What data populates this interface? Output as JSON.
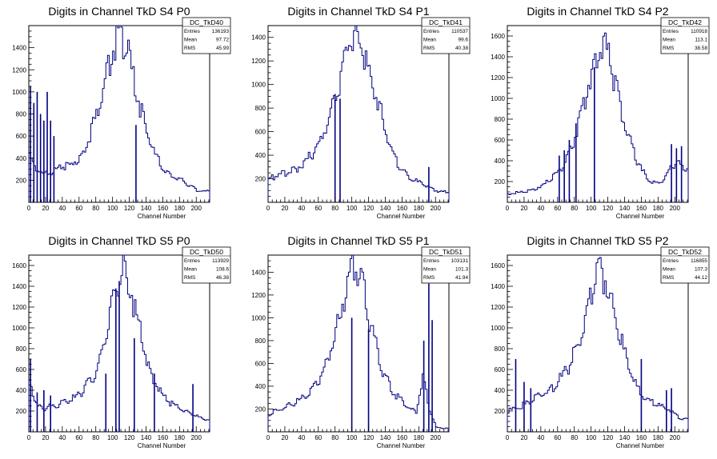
{
  "chart_data": [
    {
      "id": "DC_TkD40",
      "type": "histogram",
      "title": "Digits in Channel TkD S4 P0",
      "xlabel": "Channel Number",
      "ylabel": "",
      "xlim": [
        0,
        216
      ],
      "ylim": [
        0,
        1600
      ],
      "x_ticks": [
        0,
        20,
        40,
        60,
        80,
        100,
        120,
        140,
        160,
        180,
        200
      ],
      "y_ticks": [
        200,
        400,
        600,
        800,
        1000,
        1200,
        1400
      ],
      "stats": {
        "name": "DC_TkD40",
        "entries_label": "Entries",
        "entries": "136193",
        "mean_label": "Mean",
        "mean": "97.72",
        "rms_label": "RMS",
        "rms": "45.99"
      },
      "bins": [
        [
          0,
          400
        ],
        [
          8,
          300
        ],
        [
          16,
          250
        ],
        [
          24,
          280
        ],
        [
          32,
          290
        ],
        [
          40,
          320
        ],
        [
          48,
          340
        ],
        [
          56,
          380
        ],
        [
          64,
          460
        ],
        [
          72,
          620
        ],
        [
          80,
          800
        ],
        [
          88,
          1040
        ],
        [
          96,
          1280
        ],
        [
          104,
          1480
        ],
        [
          112,
          1470
        ],
        [
          120,
          1260
        ],
        [
          128,
          1000
        ],
        [
          136,
          750
        ],
        [
          144,
          540
        ],
        [
          152,
          400
        ],
        [
          160,
          300
        ],
        [
          168,
          240
        ],
        [
          176,
          220
        ],
        [
          184,
          190
        ],
        [
          192,
          150
        ],
        [
          200,
          110
        ],
        [
          208,
          100
        ]
      ],
      "spikes": [
        [
          2,
          1050
        ],
        [
          6,
          900
        ],
        [
          10,
          1000
        ],
        [
          14,
          800
        ],
        [
          18,
          740
        ],
        [
          22,
          1000
        ],
        [
          26,
          740
        ],
        [
          30,
          600
        ],
        [
          128,
          700
        ]
      ]
    },
    {
      "id": "DC_TkD41",
      "type": "histogram",
      "title": "Digits in Channel TkD S4 P1",
      "xlabel": "Channel Number",
      "ylabel": "",
      "xlim": [
        0,
        216
      ],
      "ylim": [
        0,
        1500
      ],
      "x_ticks": [
        0,
        20,
        40,
        60,
        80,
        100,
        120,
        140,
        160,
        180,
        200
      ],
      "y_ticks": [
        200,
        400,
        600,
        800,
        1000,
        1200,
        1400
      ],
      "stats": {
        "name": "DC_TkD41",
        "entries_label": "Entries",
        "entries": "110537",
        "mean_label": "Mean",
        "mean": "99.6",
        "rms_label": "RMS",
        "rms": "40.38"
      },
      "bins": [
        [
          0,
          200
        ],
        [
          8,
          220
        ],
        [
          16,
          240
        ],
        [
          24,
          260
        ],
        [
          32,
          280
        ],
        [
          40,
          330
        ],
        [
          48,
          380
        ],
        [
          56,
          450
        ],
        [
          64,
          560
        ],
        [
          72,
          720
        ],
        [
          80,
          900
        ],
        [
          88,
          1140
        ],
        [
          96,
          1340
        ],
        [
          104,
          1400
        ],
        [
          112,
          1300
        ],
        [
          120,
          1100
        ],
        [
          128,
          900
        ],
        [
          136,
          700
        ],
        [
          144,
          500
        ],
        [
          152,
          360
        ],
        [
          160,
          270
        ],
        [
          168,
          210
        ],
        [
          176,
          180
        ],
        [
          184,
          150
        ],
        [
          192,
          120
        ],
        [
          200,
          100
        ],
        [
          208,
          90
        ]
      ],
      "spikes": [
        [
          80,
          920
        ],
        [
          86,
          880
        ],
        [
          192,
          300
        ]
      ]
    },
    {
      "id": "DC_TkD42",
      "type": "histogram",
      "title": "Digits in Channel TkD S4 P2",
      "xlabel": "Channel Number",
      "ylabel": "",
      "xlim": [
        0,
        216
      ],
      "ylim": [
        0,
        1700
      ],
      "x_ticks": [
        0,
        20,
        40,
        60,
        80,
        100,
        120,
        140,
        160,
        180,
        200
      ],
      "y_ticks": [
        200,
        400,
        600,
        800,
        1000,
        1200,
        1400,
        1600
      ],
      "stats": {
        "name": "DC_TkD42",
        "entries_label": "Entries",
        "entries": "110918",
        "mean_label": "Mean",
        "mean": "113.1",
        "rms_label": "RMS",
        "rms": "38.58"
      },
      "bins": [
        [
          0,
          80
        ],
        [
          8,
          90
        ],
        [
          16,
          100
        ],
        [
          24,
          110
        ],
        [
          32,
          130
        ],
        [
          40,
          160
        ],
        [
          48,
          200
        ],
        [
          56,
          260
        ],
        [
          64,
          340
        ],
        [
          72,
          460
        ],
        [
          80,
          640
        ],
        [
          88,
          880
        ],
        [
          96,
          1140
        ],
        [
          104,
          1380
        ],
        [
          112,
          1540
        ],
        [
          120,
          1400
        ],
        [
          128,
          1140
        ],
        [
          136,
          880
        ],
        [
          144,
          640
        ],
        [
          152,
          440
        ],
        [
          160,
          300
        ],
        [
          168,
          220
        ],
        [
          176,
          180
        ],
        [
          184,
          200
        ],
        [
          192,
          300
        ],
        [
          200,
          380
        ],
        [
          208,
          340
        ]
      ],
      "spikes": [
        [
          62,
          450
        ],
        [
          68,
          500
        ],
        [
          74,
          600
        ],
        [
          82,
          760
        ],
        [
          104,
          1300
        ],
        [
          196,
          560
        ],
        [
          202,
          520
        ],
        [
          208,
          540
        ]
      ]
    },
    {
      "id": "DC_TkD50",
      "type": "histogram",
      "title": "Digits in Channel TkD S5 P0",
      "xlabel": "Channel Number",
      "ylabel": "",
      "xlim": [
        0,
        216
      ],
      "ylim": [
        0,
        1700
      ],
      "x_ticks": [
        0,
        20,
        40,
        60,
        80,
        100,
        120,
        140,
        160,
        180,
        200
      ],
      "y_ticks": [
        200,
        400,
        600,
        800,
        1000,
        1200,
        1400,
        1600
      ],
      "stats": {
        "name": "DC_TkD50",
        "entries_label": "Entries",
        "entries": "113929",
        "mean_label": "Mean",
        "mean": "108.6",
        "rms_label": "RMS",
        "rms": "46.38"
      },
      "bins": [
        [
          0,
          500
        ],
        [
          8,
          250
        ],
        [
          16,
          220
        ],
        [
          24,
          240
        ],
        [
          32,
          260
        ],
        [
          40,
          280
        ],
        [
          48,
          300
        ],
        [
          56,
          340
        ],
        [
          64,
          400
        ],
        [
          72,
          480
        ],
        [
          80,
          600
        ],
        [
          88,
          820
        ],
        [
          96,
          1100
        ],
        [
          104,
          1420
        ],
        [
          112,
          1560
        ],
        [
          120,
          1400
        ],
        [
          128,
          1100
        ],
        [
          136,
          820
        ],
        [
          144,
          600
        ],
        [
          152,
          440
        ],
        [
          160,
          340
        ],
        [
          168,
          280
        ],
        [
          176,
          240
        ],
        [
          184,
          200
        ],
        [
          192,
          180
        ],
        [
          200,
          150
        ],
        [
          208,
          120
        ]
      ],
      "spikes": [
        [
          2,
          700
        ],
        [
          10,
          380
        ],
        [
          18,
          400
        ],
        [
          26,
          350
        ],
        [
          92,
          560
        ],
        [
          104,
          1380
        ],
        [
          108,
          1450
        ],
        [
          126,
          900
        ],
        [
          150,
          560
        ],
        [
          196,
          460
        ]
      ]
    },
    {
      "id": "DC_TkD51",
      "type": "histogram",
      "title": "Digits in Channel TkD S5 P1",
      "xlabel": "Channel Number",
      "ylabel": "",
      "xlim": [
        0,
        216
      ],
      "ylim": [
        0,
        1550
      ],
      "x_ticks": [
        0,
        20,
        40,
        60,
        80,
        100,
        120,
        140,
        160,
        180,
        200
      ],
      "y_ticks": [
        200,
        400,
        600,
        800,
        1000,
        1200,
        1400
      ],
      "stats": {
        "name": "DC_TkD51",
        "entries_label": "Entries",
        "entries": "103131",
        "mean_label": "Mean",
        "mean": "101.3",
        "rms_label": "RMS",
        "rms": "41.94"
      },
      "bins": [
        [
          0,
          150
        ],
        [
          8,
          180
        ],
        [
          16,
          200
        ],
        [
          24,
          230
        ],
        [
          32,
          260
        ],
        [
          40,
          300
        ],
        [
          48,
          350
        ],
        [
          56,
          420
        ],
        [
          64,
          520
        ],
        [
          72,
          660
        ],
        [
          80,
          860
        ],
        [
          88,
          1120
        ],
        [
          96,
          1380
        ],
        [
          104,
          1450
        ],
        [
          112,
          1280
        ],
        [
          120,
          1000
        ],
        [
          128,
          740
        ],
        [
          136,
          540
        ],
        [
          144,
          400
        ],
        [
          152,
          320
        ],
        [
          160,
          260
        ],
        [
          168,
          200
        ],
        [
          176,
          180
        ],
        [
          184,
          500
        ],
        [
          192,
          200
        ],
        [
          200,
          40
        ],
        [
          208,
          30
        ]
      ],
      "spikes": [
        [
          100,
          1000
        ],
        [
          120,
          900
        ],
        [
          186,
          800
        ],
        [
          192,
          1300
        ],
        [
          196,
          980
        ]
      ]
    },
    {
      "id": "DC_TkD52",
      "type": "histogram",
      "title": "Digits in Channel TkD S5 P2",
      "xlabel": "Channel Number",
      "ylabel": "",
      "xlim": [
        0,
        216
      ],
      "ylim": [
        0,
        1700
      ],
      "x_ticks": [
        0,
        20,
        40,
        60,
        80,
        100,
        120,
        140,
        160,
        180,
        200
      ],
      "y_ticks": [
        200,
        400,
        600,
        800,
        1000,
        1200,
        1400,
        1600
      ],
      "stats": {
        "name": "DC_TkD52",
        "entries_label": "Entries",
        "entries": "116855",
        "mean_label": "Mean",
        "mean": "107.3",
        "rms_label": "RMS",
        "rms": "44.12"
      },
      "bins": [
        [
          0,
          200
        ],
        [
          8,
          220
        ],
        [
          16,
          250
        ],
        [
          24,
          280
        ],
        [
          32,
          320
        ],
        [
          40,
          360
        ],
        [
          48,
          400
        ],
        [
          56,
          450
        ],
        [
          64,
          520
        ],
        [
          72,
          620
        ],
        [
          80,
          760
        ],
        [
          88,
          960
        ],
        [
          96,
          1200
        ],
        [
          104,
          1460
        ],
        [
          112,
          1540
        ],
        [
          120,
          1380
        ],
        [
          128,
          1100
        ],
        [
          136,
          840
        ],
        [
          144,
          620
        ],
        [
          152,
          460
        ],
        [
          160,
          360
        ],
        [
          168,
          300
        ],
        [
          176,
          260
        ],
        [
          184,
          240
        ],
        [
          192,
          220
        ],
        [
          200,
          160
        ],
        [
          208,
          120
        ]
      ],
      "spikes": [
        [
          10,
          700
        ],
        [
          20,
          480
        ],
        [
          28,
          420
        ],
        [
          160,
          700
        ],
        [
          190,
          400
        ],
        [
          196,
          420
        ]
      ]
    }
  ]
}
